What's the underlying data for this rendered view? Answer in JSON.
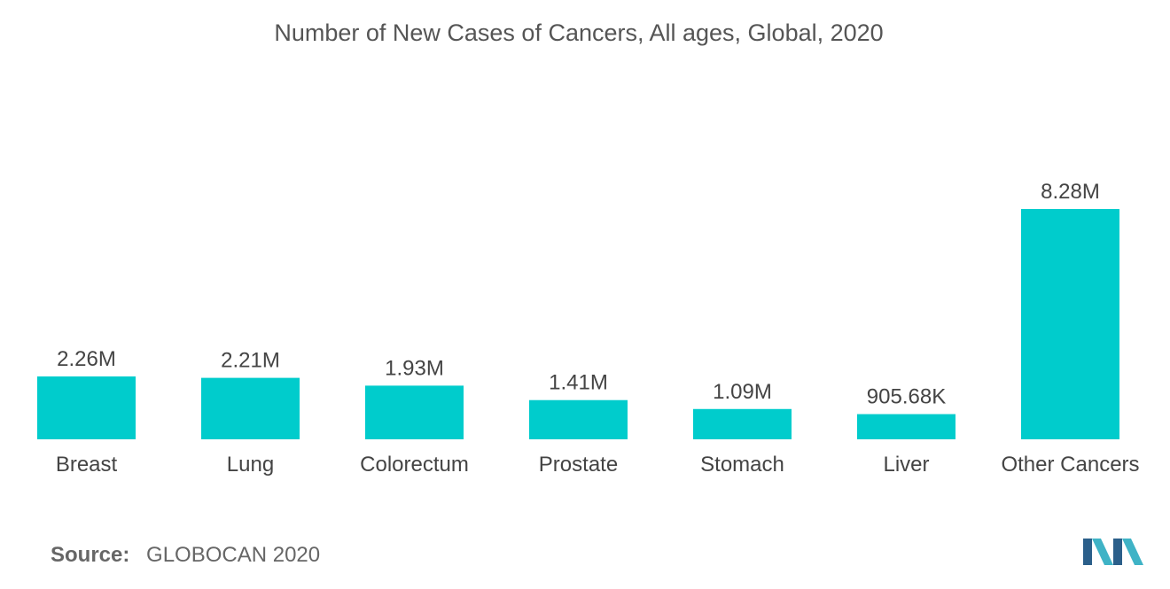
{
  "chart_data": {
    "type": "bar",
    "title": "Number of New Cases of Cancers, All ages, Global, 2020",
    "categories": [
      "Breast",
      "Lung",
      "Colorectum",
      "Prostate",
      "Stomach",
      "Liver",
      "Other Cancers"
    ],
    "values": [
      2260000,
      2210000,
      1930000,
      1410000,
      1090000,
      905680,
      8280000
    ],
    "value_labels": [
      "2.26M",
      "2.21M",
      "1.93M",
      "1.41M",
      "1.09M",
      "905.68K",
      "8.28M"
    ],
    "xlabel": "",
    "ylabel": "",
    "ylim": [
      0,
      8280000
    ],
    "grid": false,
    "legend": "none",
    "bar_color": "#00CCCC"
  },
  "source": {
    "label": "Source:",
    "value": "GLOBOCAN 2020"
  },
  "colors": {
    "logo_dark": "#2B5F8A",
    "logo_light": "#3FB3C6"
  }
}
